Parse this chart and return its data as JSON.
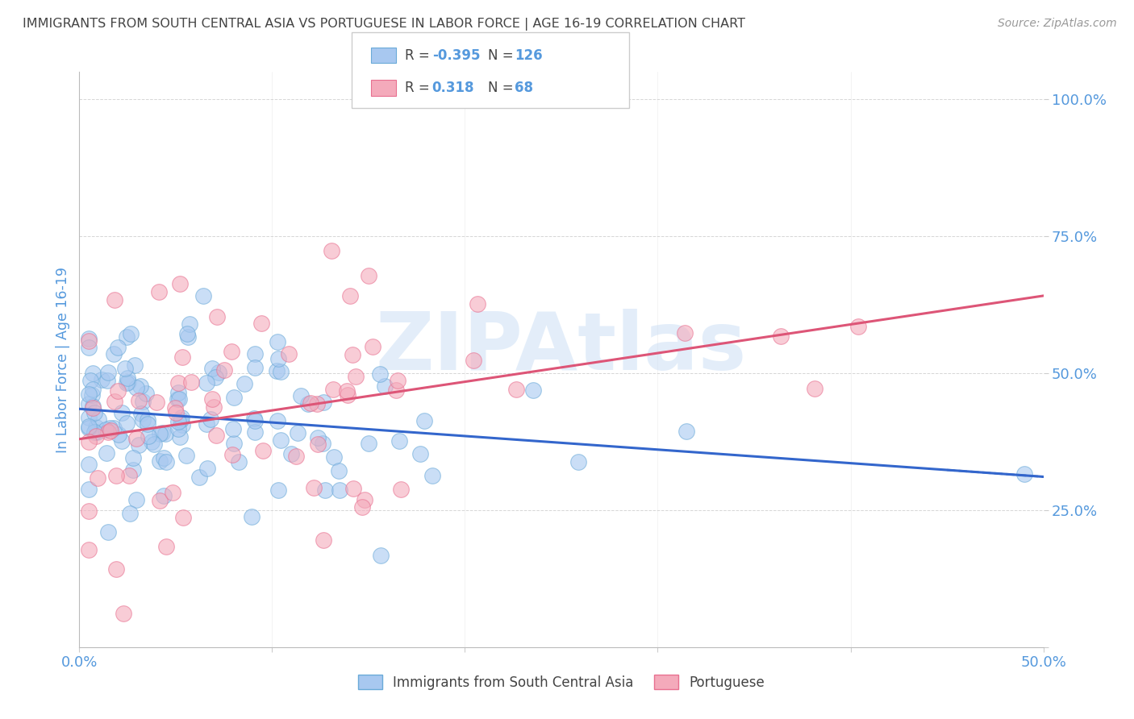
{
  "title": "IMMIGRANTS FROM SOUTH CENTRAL ASIA VS PORTUGUESE IN LABOR FORCE | AGE 16-19 CORRELATION CHART",
  "source": "Source: ZipAtlas.com",
  "ylabel": "In Labor Force | Age 16-19",
  "xlim": [
    0.0,
    0.5
  ],
  "ylim": [
    0.0,
    1.05
  ],
  "yticks": [
    0.0,
    0.25,
    0.5,
    0.75,
    1.0
  ],
  "ytick_labels": [
    "",
    "25.0%",
    "50.0%",
    "75.0%",
    "100.0%"
  ],
  "xticks": [
    0.0,
    0.1,
    0.2,
    0.3,
    0.4,
    0.5
  ],
  "xtick_labels": [
    "0.0%",
    "",
    "",
    "",
    "",
    "50.0%"
  ],
  "blue_R": -0.395,
  "blue_N": 126,
  "pink_R": 0.318,
  "pink_N": 68,
  "blue_color": "#A8C8F0",
  "pink_color": "#F4AABB",
  "blue_edge_color": "#6AAAD8",
  "pink_edge_color": "#E87090",
  "blue_line_color": "#3366CC",
  "pink_line_color": "#DD5577",
  "grid_color": "#CCCCCC",
  "title_color": "#444444",
  "axis_color": "#5599DD",
  "background_color": "#FFFFFF",
  "watermark_color": "#C8DDF5",
  "blue_line_intercept": 0.445,
  "blue_line_slope": -0.42,
  "pink_line_intercept": 0.385,
  "pink_line_slope": 0.47
}
